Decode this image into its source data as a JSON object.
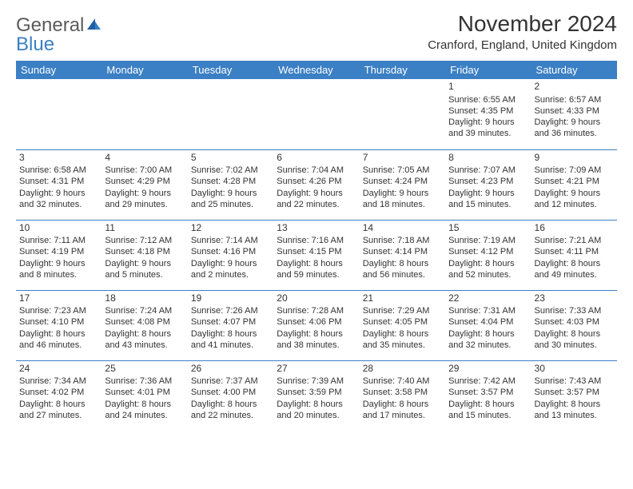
{
  "logo": {
    "text1": "General",
    "text2": "Blue"
  },
  "title": "November 2024",
  "location": "Cranford, England, United Kingdom",
  "colors": {
    "header_bg": "#3b7fc4",
    "header_text": "#ffffff",
    "cell_border": "#3b7fc4",
    "text": "#333333",
    "logo_gray": "#5a5a5a",
    "logo_blue": "#3b7fc4",
    "page_bg": "#ffffff"
  },
  "typography": {
    "title_fontsize": 28,
    "location_fontsize": 15,
    "dayheader_fontsize": 13,
    "cell_fontsize": 11,
    "daynum_fontsize": 12
  },
  "day_headers": [
    "Sunday",
    "Monday",
    "Tuesday",
    "Wednesday",
    "Thursday",
    "Friday",
    "Saturday"
  ],
  "weeks": [
    [
      {
        "day": "",
        "sunrise": "",
        "sunset": "",
        "daylight1": "",
        "daylight2": ""
      },
      {
        "day": "",
        "sunrise": "",
        "sunset": "",
        "daylight1": "",
        "daylight2": ""
      },
      {
        "day": "",
        "sunrise": "",
        "sunset": "",
        "daylight1": "",
        "daylight2": ""
      },
      {
        "day": "",
        "sunrise": "",
        "sunset": "",
        "daylight1": "",
        "daylight2": ""
      },
      {
        "day": "",
        "sunrise": "",
        "sunset": "",
        "daylight1": "",
        "daylight2": ""
      },
      {
        "day": "1",
        "sunrise": "Sunrise: 6:55 AM",
        "sunset": "Sunset: 4:35 PM",
        "daylight1": "Daylight: 9 hours",
        "daylight2": "and 39 minutes."
      },
      {
        "day": "2",
        "sunrise": "Sunrise: 6:57 AM",
        "sunset": "Sunset: 4:33 PM",
        "daylight1": "Daylight: 9 hours",
        "daylight2": "and 36 minutes."
      }
    ],
    [
      {
        "day": "3",
        "sunrise": "Sunrise: 6:58 AM",
        "sunset": "Sunset: 4:31 PM",
        "daylight1": "Daylight: 9 hours",
        "daylight2": "and 32 minutes."
      },
      {
        "day": "4",
        "sunrise": "Sunrise: 7:00 AM",
        "sunset": "Sunset: 4:29 PM",
        "daylight1": "Daylight: 9 hours",
        "daylight2": "and 29 minutes."
      },
      {
        "day": "5",
        "sunrise": "Sunrise: 7:02 AM",
        "sunset": "Sunset: 4:28 PM",
        "daylight1": "Daylight: 9 hours",
        "daylight2": "and 25 minutes."
      },
      {
        "day": "6",
        "sunrise": "Sunrise: 7:04 AM",
        "sunset": "Sunset: 4:26 PM",
        "daylight1": "Daylight: 9 hours",
        "daylight2": "and 22 minutes."
      },
      {
        "day": "7",
        "sunrise": "Sunrise: 7:05 AM",
        "sunset": "Sunset: 4:24 PM",
        "daylight1": "Daylight: 9 hours",
        "daylight2": "and 18 minutes."
      },
      {
        "day": "8",
        "sunrise": "Sunrise: 7:07 AM",
        "sunset": "Sunset: 4:23 PM",
        "daylight1": "Daylight: 9 hours",
        "daylight2": "and 15 minutes."
      },
      {
        "day": "9",
        "sunrise": "Sunrise: 7:09 AM",
        "sunset": "Sunset: 4:21 PM",
        "daylight1": "Daylight: 9 hours",
        "daylight2": "and 12 minutes."
      }
    ],
    [
      {
        "day": "10",
        "sunrise": "Sunrise: 7:11 AM",
        "sunset": "Sunset: 4:19 PM",
        "daylight1": "Daylight: 9 hours",
        "daylight2": "and 8 minutes."
      },
      {
        "day": "11",
        "sunrise": "Sunrise: 7:12 AM",
        "sunset": "Sunset: 4:18 PM",
        "daylight1": "Daylight: 9 hours",
        "daylight2": "and 5 minutes."
      },
      {
        "day": "12",
        "sunrise": "Sunrise: 7:14 AM",
        "sunset": "Sunset: 4:16 PM",
        "daylight1": "Daylight: 9 hours",
        "daylight2": "and 2 minutes."
      },
      {
        "day": "13",
        "sunrise": "Sunrise: 7:16 AM",
        "sunset": "Sunset: 4:15 PM",
        "daylight1": "Daylight: 8 hours",
        "daylight2": "and 59 minutes."
      },
      {
        "day": "14",
        "sunrise": "Sunrise: 7:18 AM",
        "sunset": "Sunset: 4:14 PM",
        "daylight1": "Daylight: 8 hours",
        "daylight2": "and 56 minutes."
      },
      {
        "day": "15",
        "sunrise": "Sunrise: 7:19 AM",
        "sunset": "Sunset: 4:12 PM",
        "daylight1": "Daylight: 8 hours",
        "daylight2": "and 52 minutes."
      },
      {
        "day": "16",
        "sunrise": "Sunrise: 7:21 AM",
        "sunset": "Sunset: 4:11 PM",
        "daylight1": "Daylight: 8 hours",
        "daylight2": "and 49 minutes."
      }
    ],
    [
      {
        "day": "17",
        "sunrise": "Sunrise: 7:23 AM",
        "sunset": "Sunset: 4:10 PM",
        "daylight1": "Daylight: 8 hours",
        "daylight2": "and 46 minutes."
      },
      {
        "day": "18",
        "sunrise": "Sunrise: 7:24 AM",
        "sunset": "Sunset: 4:08 PM",
        "daylight1": "Daylight: 8 hours",
        "daylight2": "and 43 minutes."
      },
      {
        "day": "19",
        "sunrise": "Sunrise: 7:26 AM",
        "sunset": "Sunset: 4:07 PM",
        "daylight1": "Daylight: 8 hours",
        "daylight2": "and 41 minutes."
      },
      {
        "day": "20",
        "sunrise": "Sunrise: 7:28 AM",
        "sunset": "Sunset: 4:06 PM",
        "daylight1": "Daylight: 8 hours",
        "daylight2": "and 38 minutes."
      },
      {
        "day": "21",
        "sunrise": "Sunrise: 7:29 AM",
        "sunset": "Sunset: 4:05 PM",
        "daylight1": "Daylight: 8 hours",
        "daylight2": "and 35 minutes."
      },
      {
        "day": "22",
        "sunrise": "Sunrise: 7:31 AM",
        "sunset": "Sunset: 4:04 PM",
        "daylight1": "Daylight: 8 hours",
        "daylight2": "and 32 minutes."
      },
      {
        "day": "23",
        "sunrise": "Sunrise: 7:33 AM",
        "sunset": "Sunset: 4:03 PM",
        "daylight1": "Daylight: 8 hours",
        "daylight2": "and 30 minutes."
      }
    ],
    [
      {
        "day": "24",
        "sunrise": "Sunrise: 7:34 AM",
        "sunset": "Sunset: 4:02 PM",
        "daylight1": "Daylight: 8 hours",
        "daylight2": "and 27 minutes."
      },
      {
        "day": "25",
        "sunrise": "Sunrise: 7:36 AM",
        "sunset": "Sunset: 4:01 PM",
        "daylight1": "Daylight: 8 hours",
        "daylight2": "and 24 minutes."
      },
      {
        "day": "26",
        "sunrise": "Sunrise: 7:37 AM",
        "sunset": "Sunset: 4:00 PM",
        "daylight1": "Daylight: 8 hours",
        "daylight2": "and 22 minutes."
      },
      {
        "day": "27",
        "sunrise": "Sunrise: 7:39 AM",
        "sunset": "Sunset: 3:59 PM",
        "daylight1": "Daylight: 8 hours",
        "daylight2": "and 20 minutes."
      },
      {
        "day": "28",
        "sunrise": "Sunrise: 7:40 AM",
        "sunset": "Sunset: 3:58 PM",
        "daylight1": "Daylight: 8 hours",
        "daylight2": "and 17 minutes."
      },
      {
        "day": "29",
        "sunrise": "Sunrise: 7:42 AM",
        "sunset": "Sunset: 3:57 PM",
        "daylight1": "Daylight: 8 hours",
        "daylight2": "and 15 minutes."
      },
      {
        "day": "30",
        "sunrise": "Sunrise: 7:43 AM",
        "sunset": "Sunset: 3:57 PM",
        "daylight1": "Daylight: 8 hours",
        "daylight2": "and 13 minutes."
      }
    ]
  ]
}
